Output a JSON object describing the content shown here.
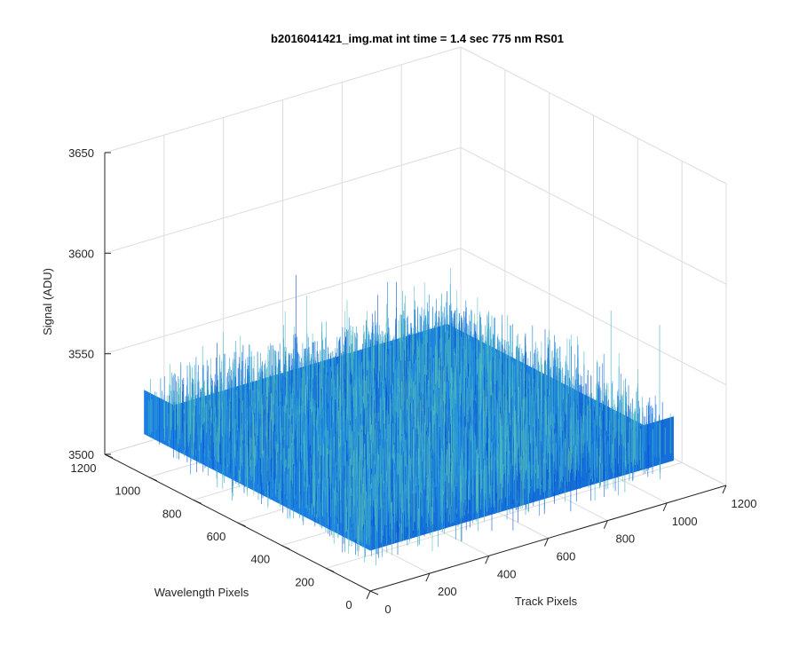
{
  "chart_data": {
    "type": "surface",
    "title": "b2016041421_img.mat int time = 1.4 sec  775 nm RS01",
    "xlabel": "Track Pixels",
    "ylabel": "Wavelength Pixels",
    "zlabel": "Signal (ADU)",
    "xlim": [
      0,
      1200
    ],
    "ylim": [
      0,
      1200
    ],
    "zlim": [
      3500,
      3650
    ],
    "x_ticks": [
      "0",
      "200",
      "400",
      "600",
      "800",
      "1000",
      "1200"
    ],
    "y_ticks": [
      "0",
      "200",
      "400",
      "600",
      "800",
      "1000",
      "1200"
    ],
    "z_ticks": [
      "3500",
      "3550",
      "3600",
      "3650"
    ],
    "surface": {
      "x_range": [
        1,
        1024
      ],
      "y_range": [
        1,
        1024
      ],
      "mean_signal": 3530,
      "noise_range": [
        3510,
        3560
      ],
      "colormap": "parula",
      "colors": [
        "#0b56d6",
        "#1a7fe0",
        "#2b9bd8",
        "#3cb2c8",
        "#5cc0b0"
      ]
    },
    "grid": true
  }
}
